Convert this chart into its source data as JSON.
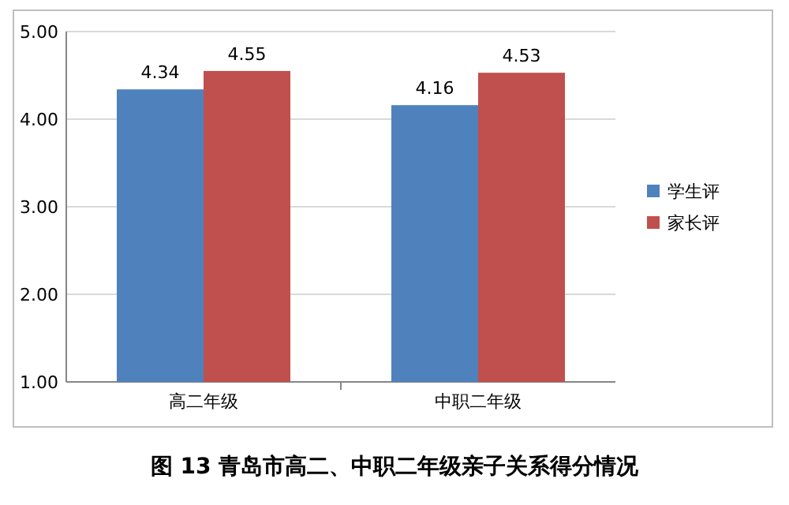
{
  "chart_data": {
    "type": "bar",
    "categories": [
      "高二年级",
      "中职二年级"
    ],
    "series": [
      {
        "name": "学生评",
        "color": "#4f81bd",
        "values": [
          4.34,
          4.16
        ]
      },
      {
        "name": "家长评",
        "color": "#c0504d",
        "values": [
          4.55,
          4.53
        ]
      }
    ],
    "ylim": [
      1,
      5
    ],
    "yticks": [
      {
        "value": 1,
        "label": "1.00"
      },
      {
        "value": 2,
        "label": "2.00"
      },
      {
        "value": 3,
        "label": "3.00"
      },
      {
        "value": 4,
        "label": "4.00"
      },
      {
        "value": 5,
        "label": "5.00"
      }
    ],
    "grid": "y",
    "legend": "right",
    "data_labels": true,
    "annotations": [
      "图 13 青岛市高二、中职二年级亲子关系得分情况"
    ]
  }
}
